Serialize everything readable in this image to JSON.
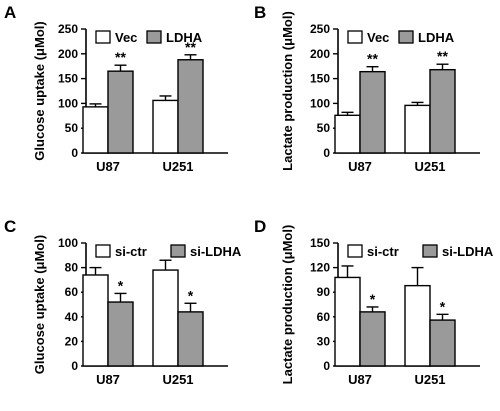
{
  "colors": {
    "series_1": "#ffffff",
    "series_2": "#9a9a9a",
    "stroke": "#000000"
  },
  "chart_data": [
    {
      "panel": "A",
      "type": "bar",
      "categories": [
        "U87",
        "U251"
      ],
      "ylabel": "Glucose uptake (μMol)",
      "ylim": [
        0,
        250
      ],
      "yticks": [
        0,
        50,
        100,
        150,
        200,
        250
      ],
      "series": [
        {
          "name": "Vec",
          "values": [
            93,
            106
          ],
          "errors": [
            6,
            9
          ]
        },
        {
          "name": "LDHA",
          "values": [
            165,
            188
          ],
          "errors": [
            12,
            10
          ]
        }
      ],
      "annotations": [
        {
          "series": 1,
          "category": 0,
          "text": "**"
        },
        {
          "series": 1,
          "category": 1,
          "text": "**"
        }
      ],
      "legend": "top-left",
      "grid": false
    },
    {
      "panel": "B",
      "type": "bar",
      "categories": [
        "U87",
        "U251"
      ],
      "ylabel": "Lactate production (μMol)",
      "ylim": [
        0,
        250
      ],
      "yticks": [
        0,
        50,
        100,
        150,
        200,
        250
      ],
      "series": [
        {
          "name": "Vec",
          "values": [
            76,
            96
          ],
          "errors": [
            6,
            6
          ]
        },
        {
          "name": "LDHA",
          "values": [
            164,
            168
          ],
          "errors": [
            10,
            11
          ]
        }
      ],
      "annotations": [
        {
          "series": 1,
          "category": 0,
          "text": "**"
        },
        {
          "series": 1,
          "category": 1,
          "text": "**"
        }
      ],
      "legend": "top-left",
      "grid": false
    },
    {
      "panel": "C",
      "type": "bar",
      "categories": [
        "U87",
        "U251"
      ],
      "ylabel": "Glucose uptake (μMol)",
      "ylim": [
        0,
        100
      ],
      "yticks": [
        0,
        20,
        40,
        60,
        80,
        100
      ],
      "series": [
        {
          "name": "si-ctr",
          "values": [
            74,
            78
          ],
          "errors": [
            6,
            8
          ]
        },
        {
          "name": "si-LDHA",
          "values": [
            52,
            44
          ],
          "errors": [
            7,
            7
          ]
        }
      ],
      "annotations": [
        {
          "series": 1,
          "category": 0,
          "text": "*"
        },
        {
          "series": 1,
          "category": 1,
          "text": "*"
        }
      ],
      "legend": "top-left",
      "grid": false
    },
    {
      "panel": "D",
      "type": "bar",
      "categories": [
        "U87",
        "U251"
      ],
      "ylabel": "Lactate production (μMol)",
      "ylim": [
        0,
        150
      ],
      "yticks": [
        0,
        30,
        60,
        90,
        120,
        150
      ],
      "series": [
        {
          "name": "si-ctr",
          "values": [
            108,
            98
          ],
          "errors": [
            14,
            22
          ]
        },
        {
          "name": "si-LDHA",
          "values": [
            66,
            56
          ],
          "errors": [
            6,
            7
          ]
        }
      ],
      "annotations": [
        {
          "series": 1,
          "category": 0,
          "text": "*"
        },
        {
          "series": 1,
          "category": 1,
          "text": "*"
        }
      ],
      "legend": "top-left",
      "grid": false
    }
  ]
}
